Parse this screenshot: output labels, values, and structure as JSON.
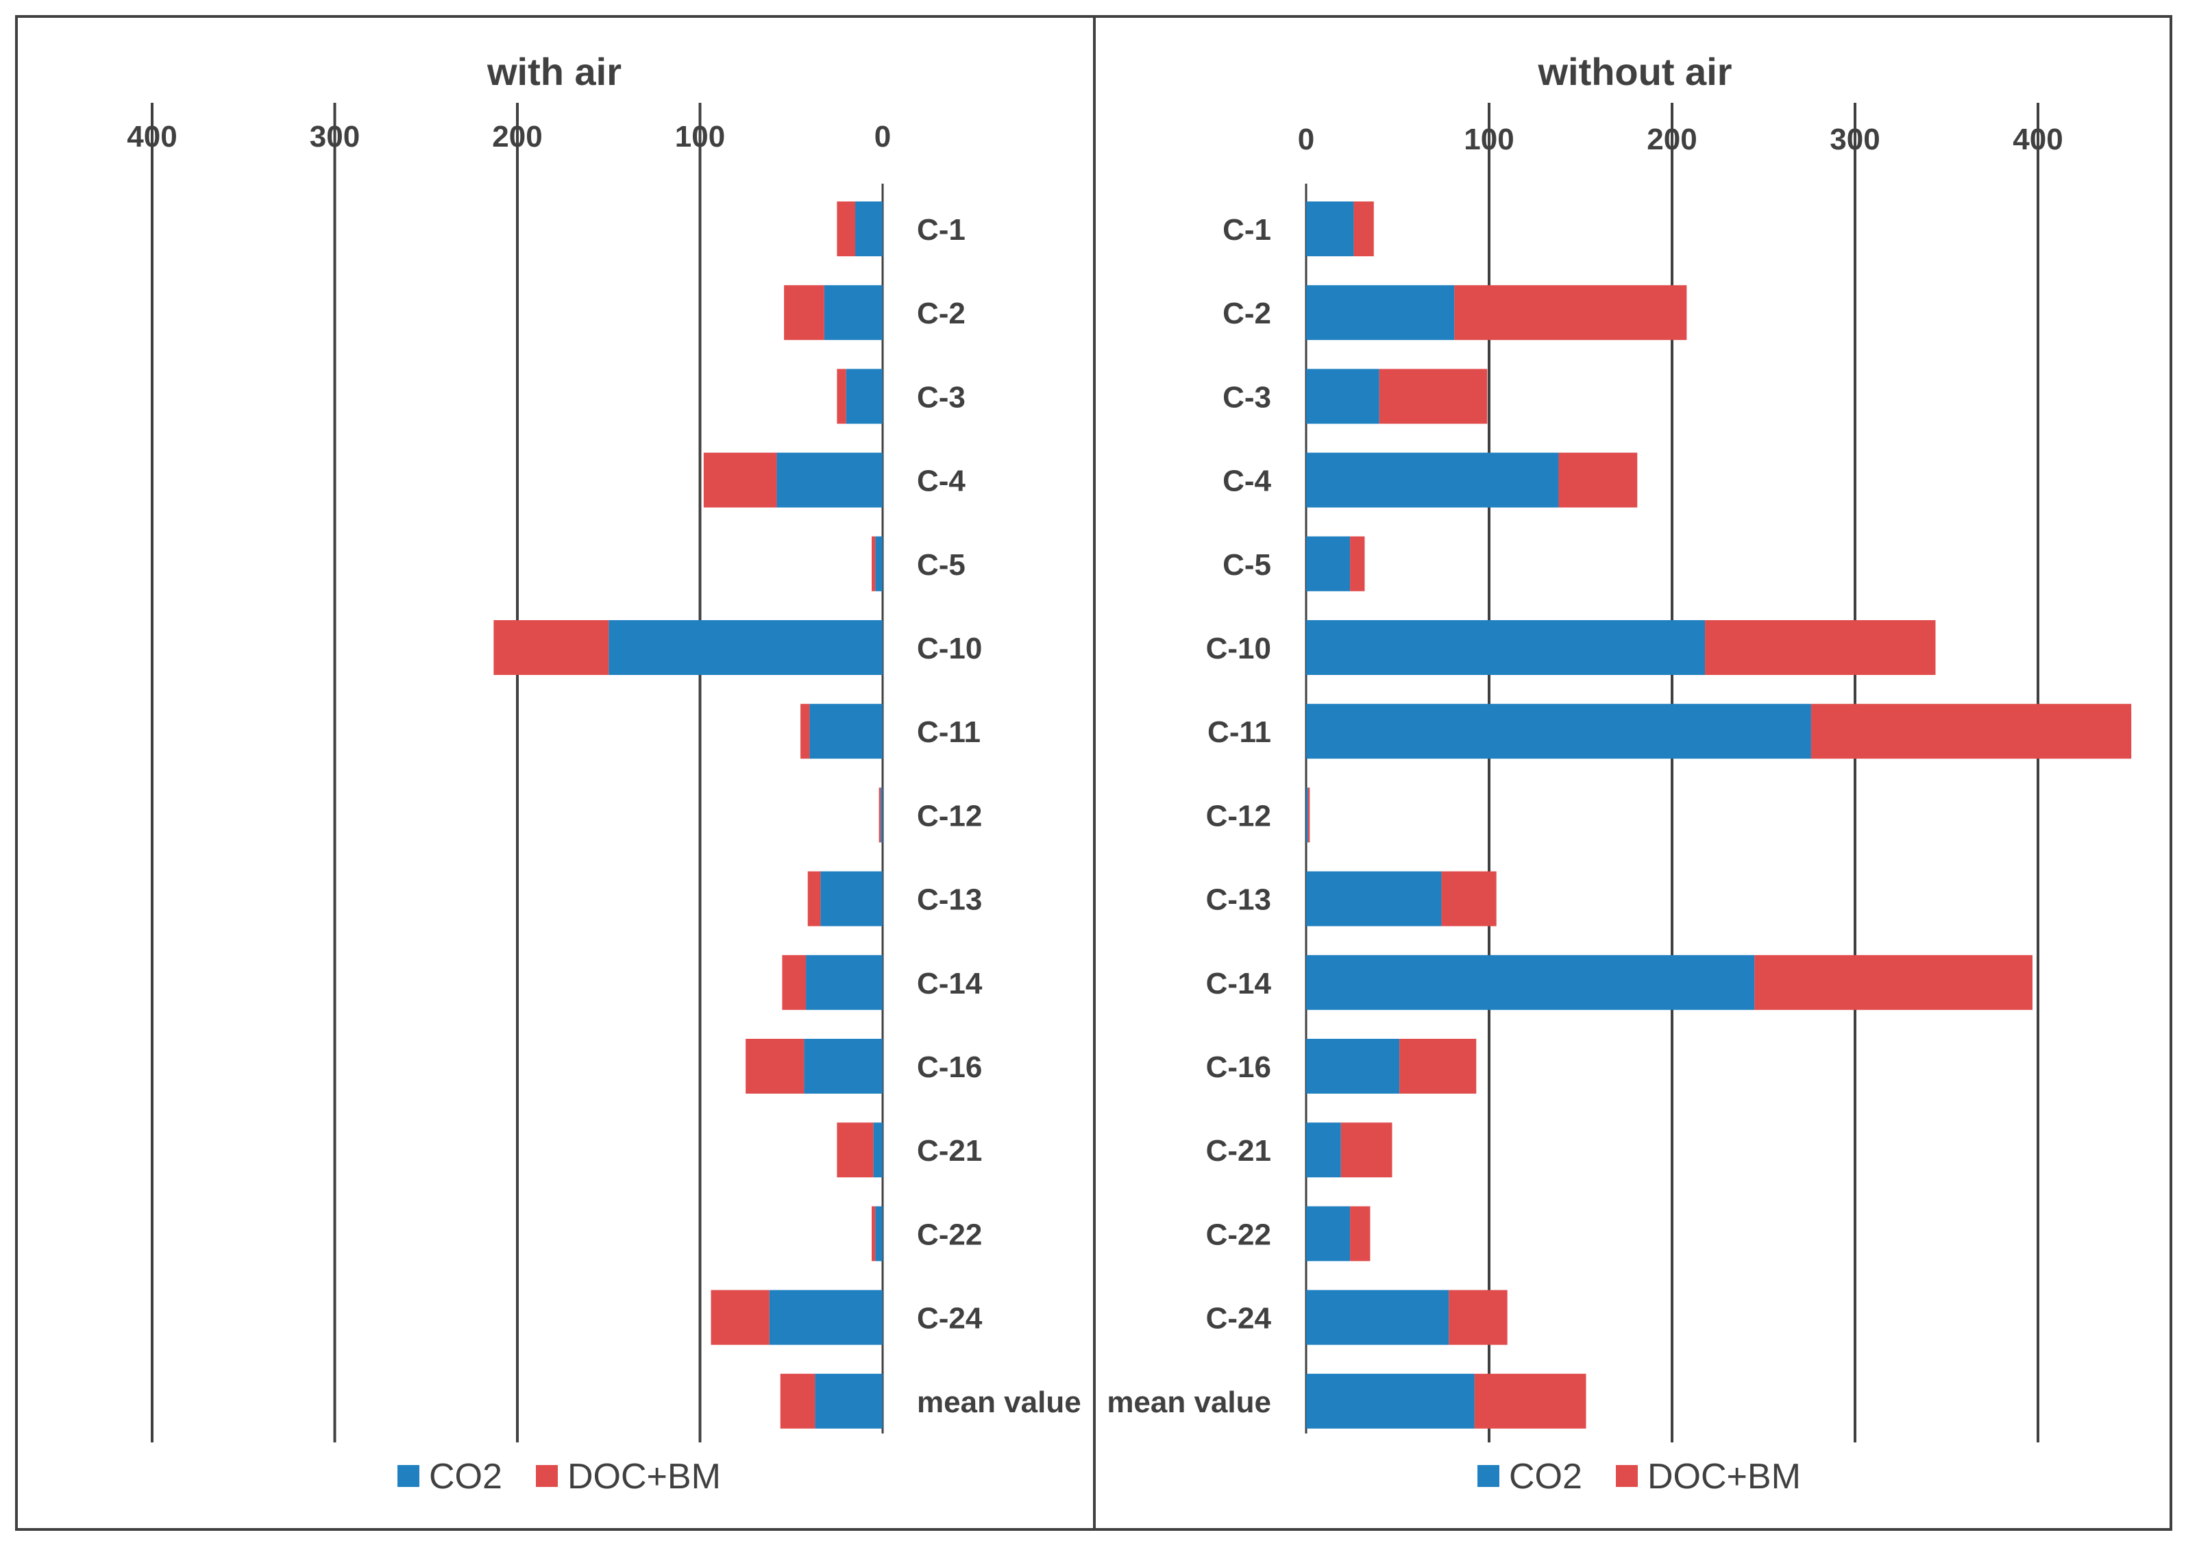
{
  "chart_data": [
    {
      "type": "bar",
      "orientation": "horizontal",
      "stacked": true,
      "direction": "leftward",
      "title": "with air",
      "xlim": [
        0,
        400
      ],
      "x_ticks": [
        "400",
        "300",
        "200",
        "100",
        "0"
      ],
      "grid": true,
      "legend_position": "bottom",
      "categories": [
        "C-1",
        "C-2",
        "C-3",
        "C-4",
        "C-5",
        "C-10",
        "C-11",
        "C-12",
        "C-13",
        "C-14",
        "C-16",
        "C-21",
        "C-22",
        "C-24",
        "mean value"
      ],
      "series": [
        {
          "name": "CO2",
          "color": "#2080c0",
          "values": [
            15,
            32,
            20,
            58,
            4,
            150,
            40,
            1,
            34,
            42,
            43,
            5,
            4,
            62,
            37
          ]
        },
        {
          "name": "DOC+BM",
          "color": "#e04c4c",
          "values": [
            10,
            22,
            5,
            40,
            2,
            63,
            5,
            1,
            7,
            13,
            32,
            20,
            2,
            32,
            19
          ]
        }
      ]
    },
    {
      "type": "bar",
      "orientation": "horizontal",
      "stacked": true,
      "direction": "rightward",
      "title": "without air",
      "xlim": [
        0,
        450
      ],
      "x_ticks": [
        "0",
        "100",
        "200",
        "300",
        "400"
      ],
      "grid": true,
      "legend_position": "bottom",
      "categories": [
        "C-1",
        "C-2",
        "C-3",
        "C-4",
        "C-5",
        "C-10",
        "C-11",
        "C-12",
        "C-13",
        "C-14",
        "C-16",
        "C-21",
        "C-22",
        "C-24",
        "mean value"
      ],
      "series": [
        {
          "name": "CO2",
          "color": "#2080c0",
          "values": [
            26,
            81,
            40,
            138,
            24,
            218,
            276,
            1,
            74,
            245,
            51,
            19,
            24,
            78,
            92
          ]
        },
        {
          "name": "DOC+BM",
          "color": "#e04c4c",
          "values": [
            11,
            127,
            59,
            43,
            8,
            126,
            175,
            1,
            30,
            152,
            42,
            28,
            11,
            32,
            61
          ]
        }
      ]
    }
  ]
}
